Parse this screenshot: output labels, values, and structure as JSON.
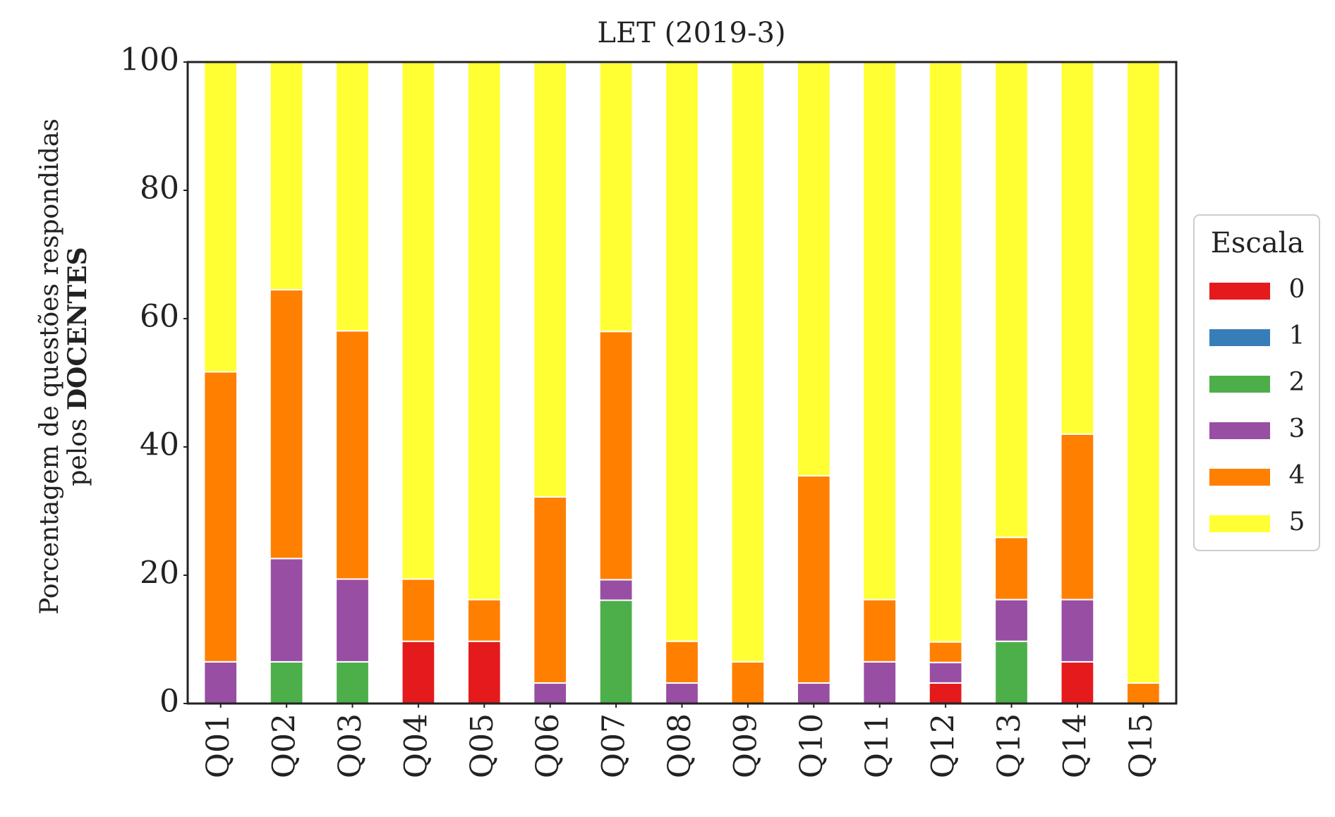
{
  "chart_data": {
    "type": "bar",
    "stacked": true,
    "title": "LET (2019-3)",
    "ylabel_line1": "Porcentagem de questões respondidas",
    "ylabel_line2_prefix": "pelos ",
    "ylabel_line2_bold": "DOCENTES",
    "xlabel": "",
    "ylim": [
      0,
      100
    ],
    "yticks": [
      "0",
      "20",
      "40",
      "60",
      "80",
      "100"
    ],
    "categories": [
      "Q01",
      "Q02",
      "Q03",
      "Q04",
      "Q05",
      "Q06",
      "Q07",
      "Q08",
      "Q09",
      "Q10",
      "Q11",
      "Q12",
      "Q13",
      "Q14",
      "Q15"
    ],
    "legend": {
      "title": "Escala",
      "position": "center-right, outside plot"
    },
    "grid": false,
    "series": [
      {
        "name": "0",
        "color": "#e41a1c",
        "values": [
          0,
          0,
          0,
          9.7,
          9.7,
          0,
          0,
          0,
          0,
          0,
          0,
          3.2,
          0,
          6.5,
          0
        ]
      },
      {
        "name": "1",
        "color": "#377eb8",
        "values": [
          0,
          0,
          0,
          0,
          0,
          0,
          0,
          0,
          0,
          0,
          0,
          0,
          0,
          0,
          0
        ]
      },
      {
        "name": "2",
        "color": "#4daf4a",
        "values": [
          0,
          6.5,
          6.5,
          0,
          0,
          0,
          16.1,
          0,
          0,
          0,
          0,
          0,
          9.7,
          0,
          0
        ]
      },
      {
        "name": "3",
        "color": "#984ea3",
        "values": [
          6.5,
          16.1,
          12.9,
          0,
          0,
          3.2,
          3.2,
          3.2,
          0,
          3.2,
          6.5,
          3.2,
          6.5,
          9.7,
          0
        ]
      },
      {
        "name": "4",
        "color": "#ff7f00",
        "values": [
          45.2,
          41.9,
          38.7,
          9.7,
          6.5,
          29.0,
          38.7,
          6.5,
          6.5,
          32.3,
          9.7,
          3.2,
          9.7,
          25.8,
          3.2
        ]
      },
      {
        "name": "5",
        "color": "#ffff33",
        "values": [
          48.4,
          35.5,
          41.9,
          80.6,
          83.9,
          67.7,
          41.9,
          90.3,
          93.5,
          64.5,
          83.9,
          90.3,
          74.2,
          58.1,
          96.8
        ]
      }
    ]
  }
}
